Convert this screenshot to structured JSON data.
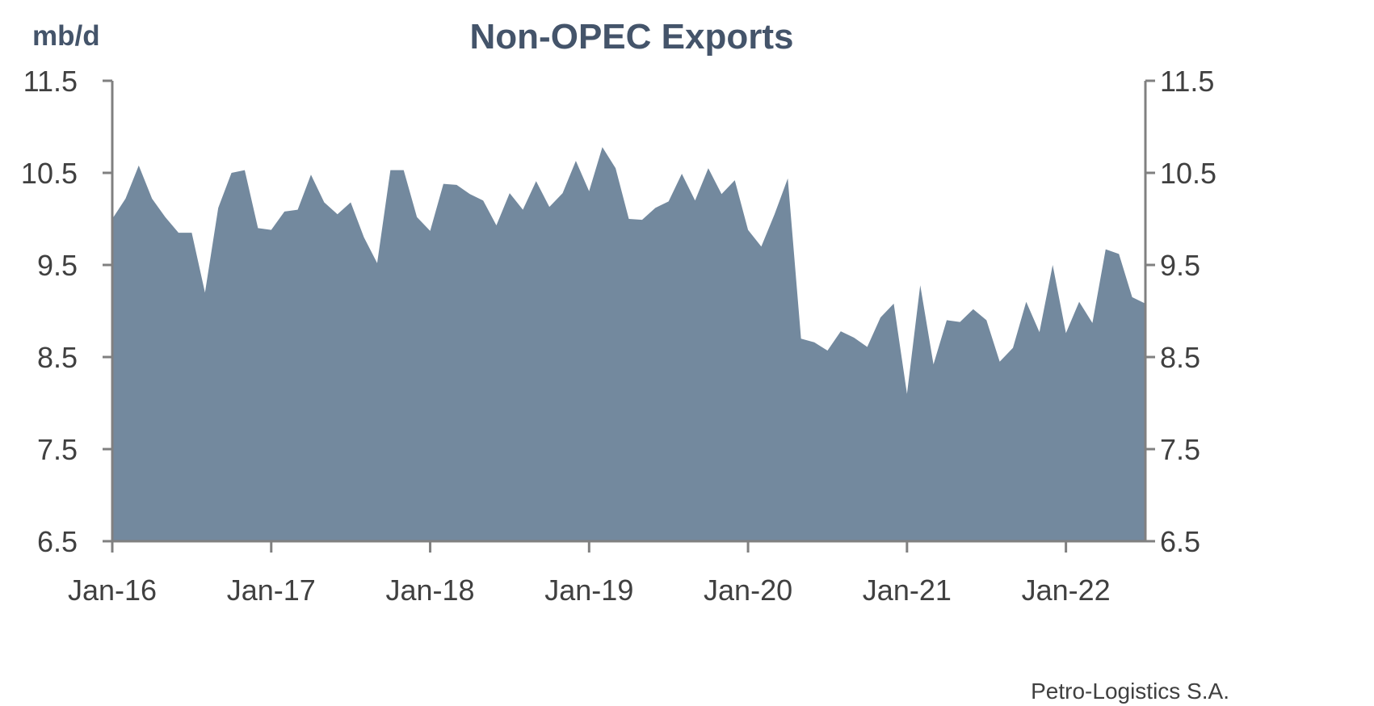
{
  "chart_data": {
    "type": "area",
    "title": "Non-OPEC Exports",
    "ylabel": "mb/d",
    "xlabel": "",
    "source": "Petro-Logistics S.A.",
    "ylim": [
      6.5,
      11.5
    ],
    "yticks": [
      11.5,
      10.5,
      9.5,
      8.5,
      7.5,
      6.5
    ],
    "ytick_labels": [
      "11.5",
      "10.5",
      "9.5",
      "8.5",
      "7.5",
      "6.5"
    ],
    "xticks": [
      {
        "label": "Jan-16",
        "index": 0
      },
      {
        "label": "Jan-17",
        "index": 12
      },
      {
        "label": "Jan-18",
        "index": 24
      },
      {
        "label": "Jan-19",
        "index": 36
      },
      {
        "label": "Jan-20",
        "index": 48
      },
      {
        "label": "Jan-21",
        "index": 60
      },
      {
        "label": "Jan-22",
        "index": 72
      }
    ],
    "dual_y_axis": true,
    "fill_color": "#73899E",
    "axis_color": "#808080",
    "title_color": "#44546A",
    "series": [
      {
        "values": [
          10.0,
          10.22,
          10.58,
          10.22,
          10.02,
          9.85,
          9.85,
          9.2,
          10.12,
          10.5,
          10.53,
          9.9,
          9.88,
          10.08,
          10.1,
          10.48,
          10.18,
          10.05,
          10.18,
          9.8,
          9.52,
          10.53,
          10.53,
          10.02,
          9.87,
          10.38,
          10.37,
          10.27,
          10.2,
          9.93,
          10.28,
          10.1,
          10.41,
          10.13,
          10.28,
          10.63,
          10.3,
          10.78,
          10.55,
          10.0,
          9.99,
          10.12,
          10.19,
          10.49,
          10.2,
          10.55,
          10.27,
          10.42,
          9.88,
          9.7,
          10.05,
          10.44,
          8.7,
          8.66,
          8.57,
          8.78,
          8.71,
          8.61,
          8.93,
          9.08,
          8.1,
          9.28,
          8.42,
          8.9,
          8.88,
          9.02,
          8.9,
          8.45,
          8.6,
          9.1,
          8.77,
          9.5,
          8.76,
          9.1,
          8.87,
          9.67,
          9.62,
          9.15,
          9.08
        ]
      }
    ]
  }
}
